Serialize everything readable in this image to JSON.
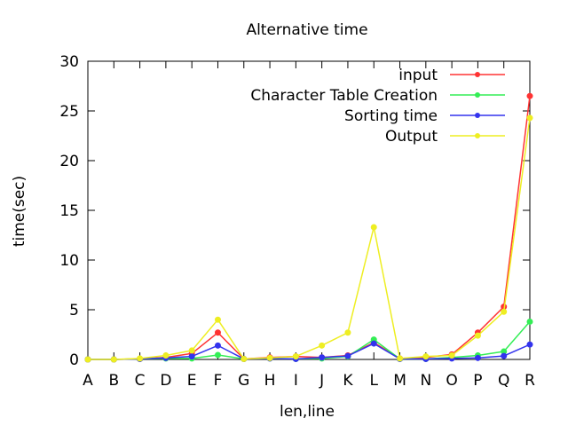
{
  "chart_data": {
    "type": "line",
    "title": "Alternative time",
    "xlabel": "len,line",
    "ylabel": "time(sec)",
    "categories": [
      "A",
      "B",
      "C",
      "D",
      "E",
      "F",
      "G",
      "H",
      "I",
      "J",
      "K",
      "L",
      "M",
      "N",
      "O",
      "P",
      "Q",
      "R"
    ],
    "ylim": [
      0,
      30
    ],
    "yticks": [
      0,
      5,
      10,
      15,
      20,
      25,
      30
    ],
    "grid": false,
    "legend_position": "top-right",
    "series": [
      {
        "name": "input",
        "color": "#ff3333",
        "values": [
          0.0,
          0.0,
          0.05,
          0.2,
          0.6,
          2.7,
          0.05,
          0.2,
          0.3,
          0.2,
          0.4,
          1.7,
          0.1,
          0.2,
          0.5,
          2.7,
          5.3,
          26.5
        ]
      },
      {
        "name": "Character Table Creation",
        "color": "#33ee55",
        "values": [
          0.0,
          0.0,
          0.05,
          0.1,
          0.1,
          0.45,
          0.05,
          0.1,
          0.05,
          0.1,
          0.3,
          2.0,
          0.05,
          0.05,
          0.2,
          0.4,
          0.8,
          3.8
        ]
      },
      {
        "name": "Sorting time",
        "color": "#3333ee",
        "values": [
          0.0,
          0.0,
          0.05,
          0.15,
          0.3,
          1.4,
          0.05,
          0.1,
          0.05,
          0.2,
          0.35,
          1.6,
          0.05,
          0.05,
          0.1,
          0.15,
          0.35,
          1.5
        ]
      },
      {
        "name": "Output",
        "color": "#eeee22",
        "values": [
          0.0,
          0.0,
          0.1,
          0.4,
          0.9,
          4.0,
          0.05,
          0.15,
          0.3,
          1.4,
          2.7,
          13.3,
          0.1,
          0.3,
          0.4,
          2.4,
          4.8,
          24.3
        ]
      }
    ]
  }
}
